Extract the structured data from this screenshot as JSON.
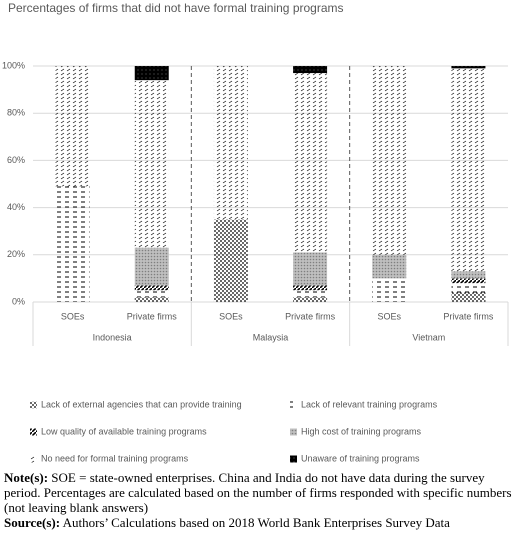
{
  "chart_data": {
    "type": "stacked-bar",
    "title": "Percentages of firms that did not have formal training programs",
    "categories": [
      "SOEs",
      "Private firms",
      "SOEs",
      "Private firms",
      "SOEs",
      "Private firms"
    ],
    "groups": [
      "Indonesia",
      "Malaysia",
      "Vietnam"
    ],
    "series": [
      {
        "name": "Lack of external agencies that can provide training",
        "color": "#000000",
        "values": [
          0,
          2,
          35,
          2,
          0,
          4
        ]
      },
      {
        "name": "Lack of relevant training programs",
        "color": "#000000",
        "values": [
          49,
          3,
          0,
          3,
          10,
          4
        ]
      },
      {
        "name": "Low quality of available training programs",
        "color": "#000000",
        "values": [
          0,
          2,
          0,
          2,
          0,
          2
        ]
      },
      {
        "name": "High cost of training programs",
        "color": "#7f7f7f",
        "values": [
          0,
          16,
          0,
          14,
          10,
          3
        ]
      },
      {
        "name": "No need for formal training programs",
        "color": "#000000",
        "values": [
          51,
          71,
          65,
          76,
          80,
          86
        ]
      },
      {
        "name": "Unaware of training programs",
        "color": "#000000",
        "values": [
          0,
          6,
          0,
          3,
          0,
          1
        ]
      }
    ],
    "ylim": [
      0,
      100
    ],
    "yticks": [
      {
        "value": 0,
        "label": "0%"
      },
      {
        "value": 20,
        "label": "20%"
      },
      {
        "value": 40,
        "label": "40%"
      },
      {
        "value": 60,
        "label": "60%"
      },
      {
        "value": 80,
        "label": "80%"
      },
      {
        "value": 100,
        "label": "100%"
      }
    ],
    "grid": true
  },
  "notes": [
    {
      "label": "Note(s):",
      "text": " SOE = state-owned enterprises. China and India do not have data during the survey period. Percentages are calculated based on the number of firms responded with specific numbers (not leaving blank answers)"
    },
    {
      "label": "Source(s):",
      "text": " Authors’ Calculations based on 2018 World Bank Enterprises Survey Data"
    }
  ]
}
